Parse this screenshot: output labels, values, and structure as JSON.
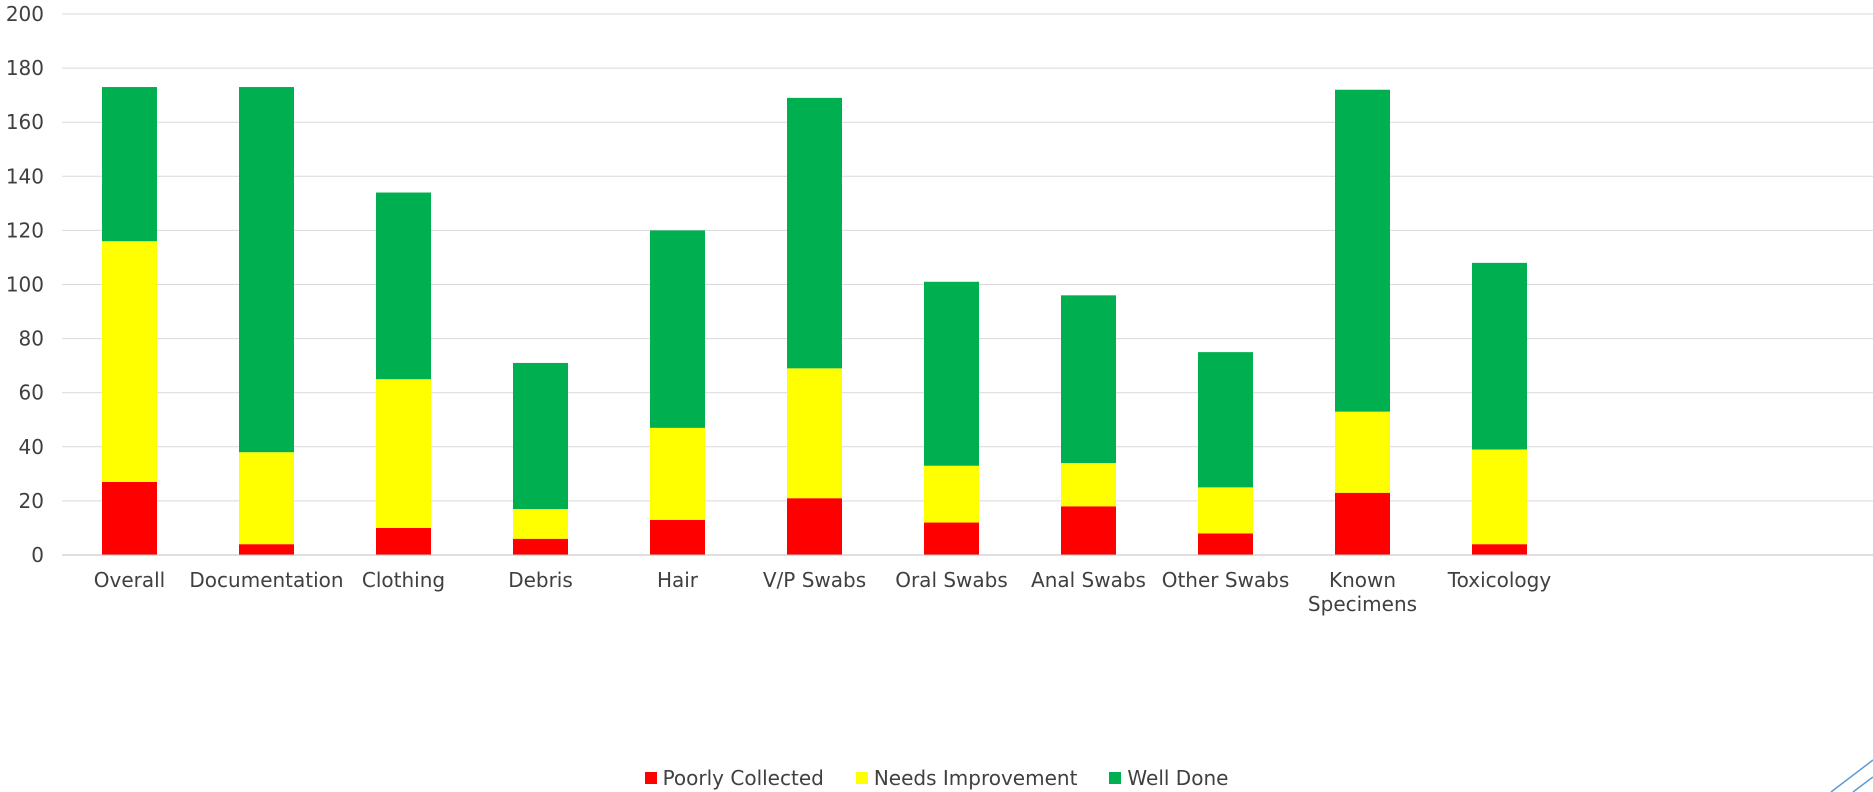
{
  "chart_data": {
    "type": "bar",
    "stacked": true,
    "title": "",
    "xlabel": "",
    "ylabel": "",
    "ylim": [
      0,
      200
    ],
    "yticks": [
      0,
      20,
      40,
      60,
      80,
      100,
      120,
      140,
      160,
      180,
      200
    ],
    "grid": true,
    "legend_position": "bottom",
    "categories": [
      "Overall",
      "Documentation",
      "Clothing",
      "Debris",
      "Hair",
      "V/P Swabs",
      "Oral Swabs",
      "Anal Swabs",
      "Other Swabs",
      "Known Specimens",
      "Toxicology"
    ],
    "series": [
      {
        "name": "Poorly Collected",
        "color": "#ff0000",
        "values": [
          27,
          4,
          10,
          6,
          13,
          21,
          12,
          18,
          8,
          23,
          4
        ]
      },
      {
        "name": "Needs Improvement",
        "color": "#ffff00",
        "values": [
          89,
          34,
          55,
          11,
          34,
          48,
          21,
          16,
          17,
          30,
          35
        ]
      },
      {
        "name": "Well Done",
        "color": "#00b050",
        "values": [
          57,
          135,
          69,
          54,
          73,
          100,
          68,
          62,
          50,
          119,
          69
        ]
      }
    ]
  },
  "colors": {
    "grid": "#d9d9d9",
    "axis": "#bfbfbf",
    "text": "#404040",
    "decoration": "#5b9bd5"
  }
}
